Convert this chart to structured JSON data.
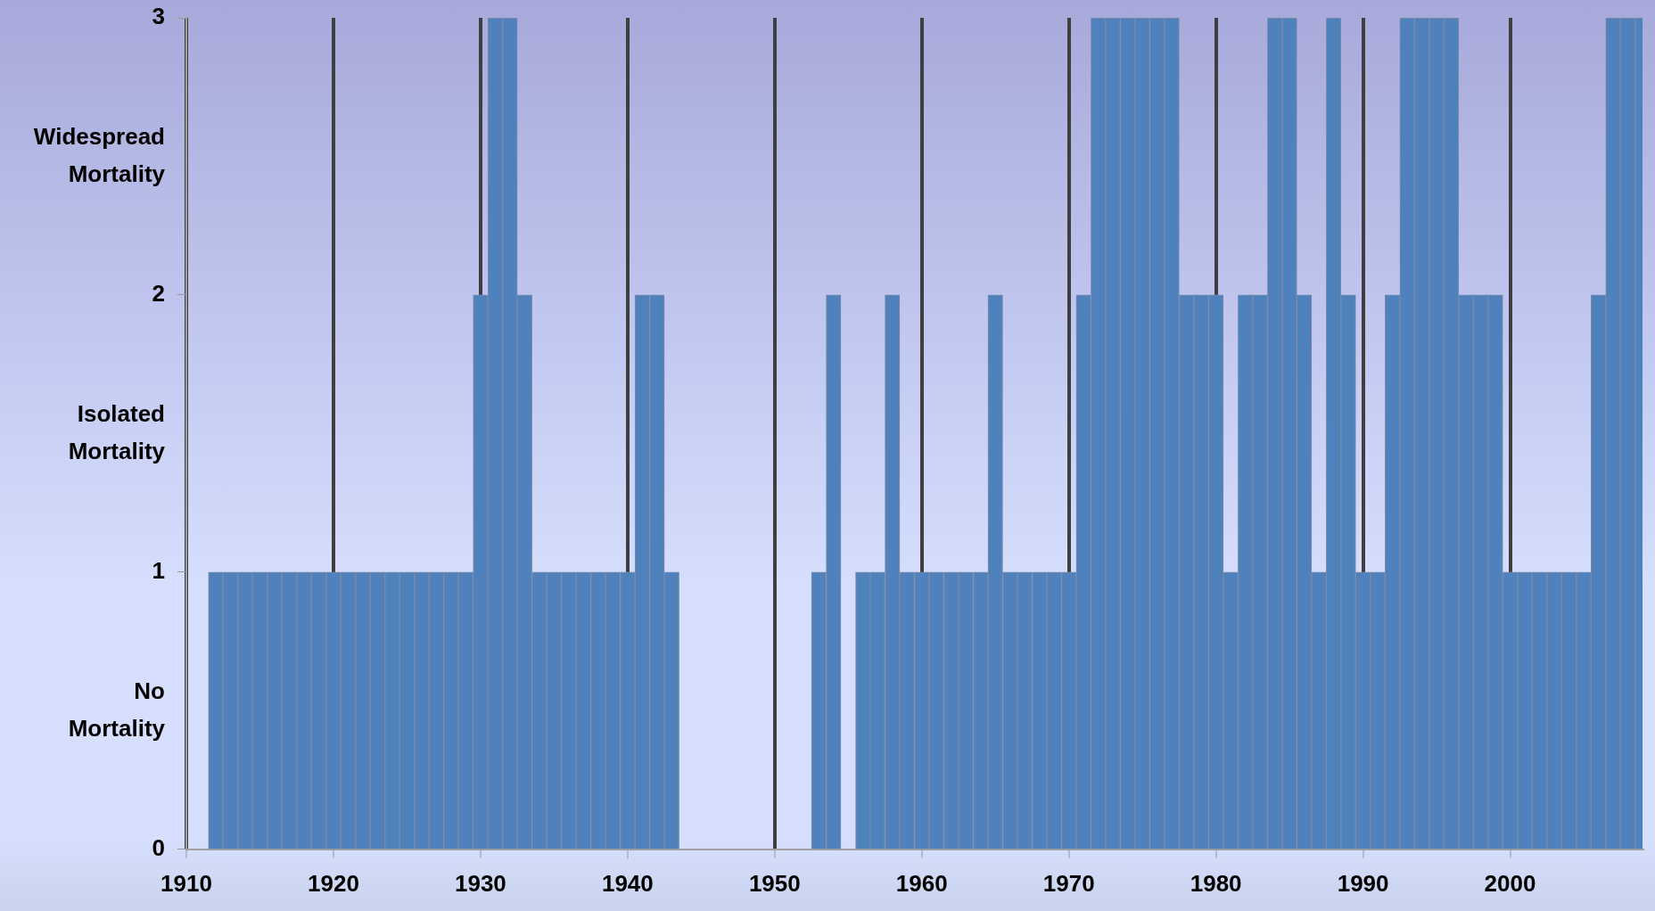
{
  "chart_data": {
    "type": "bar",
    "x": [
      1912,
      1913,
      1914,
      1915,
      1916,
      1917,
      1918,
      1919,
      1920,
      1921,
      1922,
      1923,
      1924,
      1925,
      1926,
      1927,
      1928,
      1929,
      1930,
      1931,
      1932,
      1933,
      1934,
      1935,
      1936,
      1937,
      1938,
      1939,
      1940,
      1941,
      1942,
      1943,
      1944,
      1945,
      1946,
      1947,
      1948,
      1949,
      1950,
      1951,
      1952,
      1953,
      1954,
      1955,
      1956,
      1957,
      1958,
      1959,
      1960,
      1961,
      1962,
      1963,
      1964,
      1965,
      1966,
      1967,
      1968,
      1969,
      1970,
      1971,
      1972,
      1973,
      1974,
      1975,
      1976,
      1977,
      1978,
      1979,
      1980,
      1981,
      1982,
      1983,
      1984,
      1985,
      1986,
      1987,
      1988,
      1989,
      1990,
      1991,
      1992,
      1993,
      1994,
      1995,
      1996,
      1997,
      1998,
      1999,
      2000,
      2001,
      2002,
      2003,
      2004,
      2005,
      2006,
      2007,
      2008,
      2009
    ],
    "values": [
      1,
      1,
      1,
      1,
      1,
      1,
      1,
      1,
      1,
      1,
      1,
      1,
      1,
      1,
      1,
      1,
      1,
      1,
      2,
      3,
      3,
      2,
      1,
      1,
      1,
      1,
      1,
      1,
      1,
      2,
      2,
      1,
      0,
      0,
      0,
      0,
      0,
      0,
      0,
      0,
      0,
      1,
      2,
      0,
      1,
      1,
      2,
      1,
      1,
      1,
      1,
      1,
      1,
      2,
      1,
      1,
      1,
      1,
      1,
      2,
      3,
      3,
      3,
      3,
      3,
      3,
      2,
      2,
      2,
      1,
      2,
      2,
      3,
      3,
      2,
      1,
      3,
      2,
      1,
      1,
      2,
      3,
      3,
      3,
      3,
      2,
      2,
      2,
      1,
      1,
      1,
      1,
      1,
      1,
      2,
      3,
      3,
      3
    ],
    "color": "#4f81bd",
    "xlim": [
      1910,
      2009
    ],
    "xticks": [
      1910,
      1920,
      1930,
      1940,
      1950,
      1960,
      1970,
      1980,
      1990,
      2000
    ],
    "ylim": [
      0,
      3
    ],
    "yticks": [
      0,
      {
        "value": 0.5,
        "label": "No Mortality"
      },
      1,
      {
        "value": 1.5,
        "label": "Isolated Mortality"
      },
      2,
      {
        "value": 2.5,
        "label": "Widespread Mortality"
      },
      3
    ],
    "grid": "x"
  }
}
